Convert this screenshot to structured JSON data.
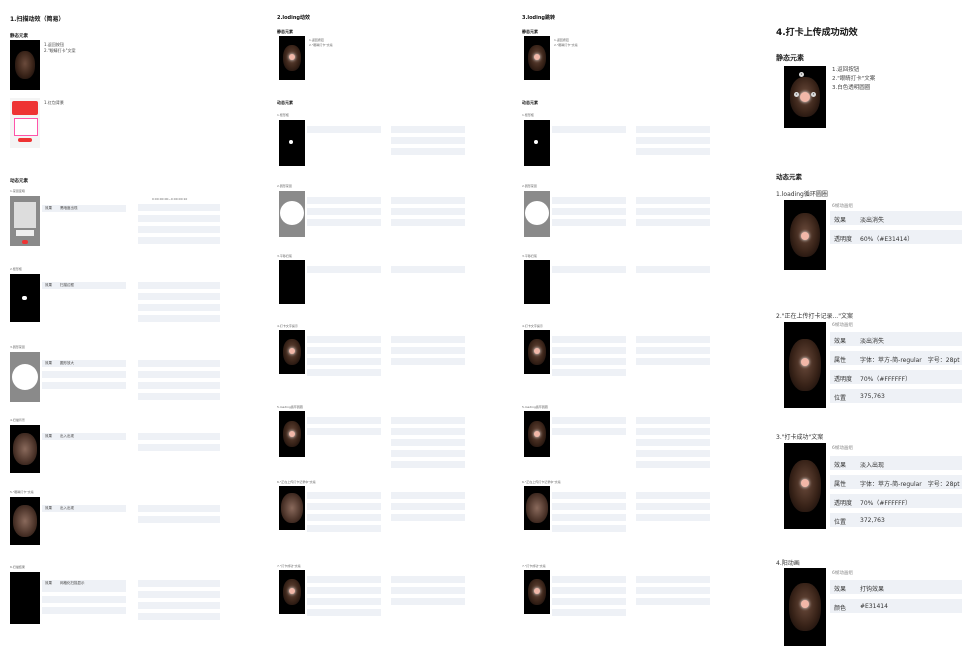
{
  "col1": {
    "title": "1.扫描动效（简易）",
    "static_title": "静态元素",
    "static_notes": [
      "1.返回按钮",
      "2.\"眼睛打卡\"文案"
    ],
    "static_notes2": "1.红包背景",
    "dynamic_title": "动态元素",
    "items": [
      {
        "label": "1.蒙层变暗",
        "k1": "效果",
        "v1": "黑暗度出现",
        "r1": "0:00:00:00~0:00:00:10"
      },
      {
        "label": "2.矩形框",
        "k1": "效果",
        "v1": "扫描边框"
      },
      {
        "label": "3.圆形蒙层",
        "k1": "效果",
        "v1": "圆形放大"
      },
      {
        "label": "4.扫描背景",
        "k1": "效果",
        "v1": "出入出现"
      },
      {
        "label": "5.\"眼睛打卡\"文案",
        "k1": "效果",
        "v1": "出入出现"
      },
      {
        "label": "6.扫描结果",
        "k1": "效果",
        "v1": "网格化扫描显示"
      }
    ]
  },
  "col2": {
    "title": "2.loding动效",
    "static_title": "静态元素",
    "static_notes": [
      "1.返回按钮",
      "2.\"眼睛打卡\"文案"
    ],
    "dynamic_title": "动态元素",
    "items": [
      "1.矩形框",
      "2.圆形蒙层",
      "3.平移扫尾",
      "4.打卡文字提示",
      "5.loading循环圆圈",
      "6.\"正在上传打卡记录中\"文案",
      "7.\"打卡成功\"文案"
    ]
  },
  "col3": {
    "title": "3.loding跳转",
    "static_title": "静态元素",
    "static_notes": [
      "1.返回按钮",
      "2.\"眼睛打卡\"文案"
    ],
    "dynamic_title": "动态元素",
    "items": [
      "1.矩形框",
      "2.圆形蒙层",
      "3.平移扫尾",
      "4.打卡文字提示",
      "5.loading循环圆圈",
      "6.\"正在上传打卡记录中\"文案",
      "7.\"打卡成功\"文案"
    ]
  },
  "col4": {
    "title": "4.打卡上传成功动效",
    "static_title": "静态元素",
    "static_notes": [
      "1.返回按钮",
      "2.\"眼睛打卡\"文案",
      "3.白色透明圆圈"
    ],
    "dynamic_title": "动态元素",
    "sections": [
      {
        "label": "1.loading循环圆圈",
        "sub": "6帧动画组",
        "rows": [
          [
            "效果",
            "淡出消失"
          ],
          [
            "透明度",
            "60%（#E31414）"
          ]
        ]
      },
      {
        "label": "2.\"正在上传打卡记录...\"文案",
        "sub": "6帧动画组",
        "rows": [
          [
            "效果",
            "淡出消失"
          ],
          [
            "属性",
            "字体：苹方-简-regular　字号：28pt"
          ],
          [
            "透明度",
            "70%（#FFFFFF）"
          ],
          [
            "位置",
            "375,763"
          ]
        ]
      },
      {
        "label": "3.\"打卡成功\"文案",
        "sub": "6帧动画组",
        "rows": [
          [
            "效果",
            "淡入出现"
          ],
          [
            "属性",
            "字体：苹方-简-regular　字号：28pt"
          ],
          [
            "透明度",
            "70%（#FFFFFF）"
          ],
          [
            "位置",
            "372,763"
          ]
        ]
      },
      {
        "label": "4.阳动画",
        "sub": "6帧动画组",
        "rows": [
          [
            "效果",
            "打钩效果"
          ],
          [
            "颜色",
            "#E31414"
          ]
        ]
      }
    ]
  }
}
